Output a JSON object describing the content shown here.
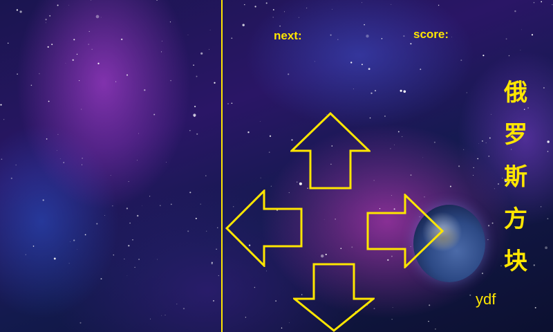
{
  "hud": {
    "next_label": "next:",
    "score_label": "score:"
  },
  "title_chars": [
    "俄",
    "罗",
    "斯",
    "方",
    "块"
  ],
  "author": "ydf",
  "controls": {
    "up": "arrow-up-icon",
    "left": "arrow-left-icon",
    "right": "arrow-right-icon",
    "down": "arrow-down-icon"
  },
  "colors": {
    "accent": "#ffe600"
  }
}
